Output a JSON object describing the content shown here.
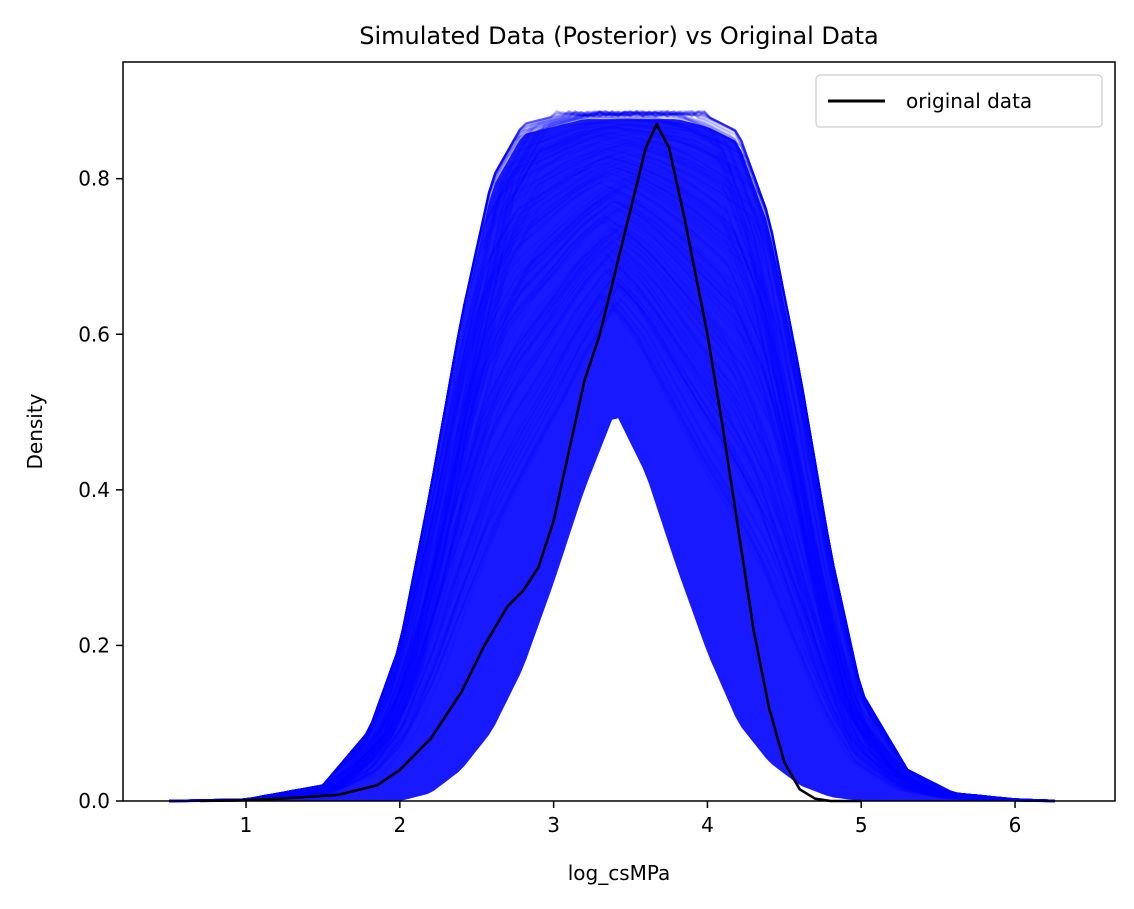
{
  "chart_data": {
    "type": "line",
    "title": "Simulated Data (Posterior) vs Original Data",
    "xlabel": "log_csMPa",
    "ylabel": "Density",
    "xlim": [
      0.2,
      6.65
    ],
    "ylim": [
      0,
      0.95
    ],
    "xticks": [
      1,
      2,
      3,
      4,
      5,
      6
    ],
    "yticks": [
      0.0,
      0.2,
      0.4,
      0.6,
      0.8
    ],
    "grid": false,
    "legend": {
      "placement": "top-right",
      "entries": [
        "original data"
      ]
    },
    "colors": {
      "simulated": "#0000ff",
      "original": "#000000"
    },
    "simulated_band": {
      "x": [
        0.5,
        1.0,
        1.5,
        1.8,
        2.0,
        2.2,
        2.4,
        2.6,
        2.8,
        3.0,
        3.2,
        3.4,
        3.6,
        3.8,
        4.0,
        4.2,
        4.4,
        4.6,
        4.8,
        5.0,
        5.3,
        5.6,
        6.0,
        6.3
      ],
      "lower": [
        0.0,
        0.0,
        0.0,
        0.0,
        0.0,
        0.01,
        0.04,
        0.09,
        0.17,
        0.28,
        0.4,
        0.5,
        0.42,
        0.3,
        0.19,
        0.1,
        0.05,
        0.02,
        0.005,
        0.0,
        0.0,
        0.0,
        0.0,
        0.0
      ],
      "upper": [
        0.0,
        0.002,
        0.02,
        0.09,
        0.2,
        0.4,
        0.62,
        0.8,
        0.87,
        0.88,
        0.89,
        0.89,
        0.89,
        0.89,
        0.88,
        0.86,
        0.75,
        0.55,
        0.32,
        0.14,
        0.04,
        0.01,
        0.002,
        0.0
      ]
    },
    "series": [
      {
        "name": "original data",
        "x": [
          0.7,
          1.0,
          1.3,
          1.6,
          1.85,
          2.0,
          2.2,
          2.4,
          2.55,
          2.7,
          2.8,
          2.9,
          3.0,
          3.1,
          3.2,
          3.3,
          3.4,
          3.5,
          3.6,
          3.67,
          3.75,
          3.85,
          4.0,
          4.1,
          4.2,
          4.3,
          4.4,
          4.5,
          4.6,
          4.7,
          4.8,
          5.0
        ],
        "values": [
          0.0,
          0.001,
          0.004,
          0.008,
          0.02,
          0.04,
          0.08,
          0.14,
          0.2,
          0.25,
          0.27,
          0.3,
          0.36,
          0.45,
          0.54,
          0.6,
          0.68,
          0.76,
          0.84,
          0.87,
          0.84,
          0.75,
          0.6,
          0.48,
          0.35,
          0.22,
          0.12,
          0.05,
          0.015,
          0.003,
          0.0,
          0.0
        ]
      }
    ]
  }
}
